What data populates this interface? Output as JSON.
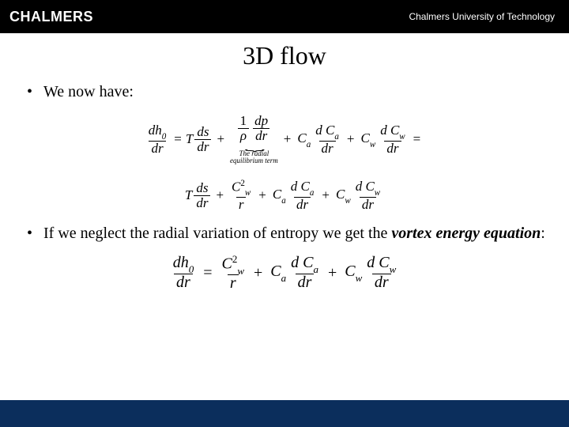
{
  "header": {
    "logo_text": "CHALMERS",
    "university": "Chalmers University of Technology"
  },
  "slide": {
    "title": "3D flow",
    "bullet1": "We now have:",
    "bullet2_a": "If we neglect the radial variation of entropy we get the ",
    "bullet2_b": "vortex energy equation",
    "bullet2_c": ":"
  },
  "equations": {
    "brace_label_line1": "The radial",
    "brace_label_line2": "equilibrium term",
    "h0": "dh",
    "zero": "0",
    "dr": "dr",
    "T": "T",
    "ds": "ds",
    "one": "1",
    "rho": "ρ",
    "dp": "dp",
    "Ca": "C",
    "a": "a",
    "dCa": "d C",
    "Cw": "C",
    "w": "w",
    "dCw": "d C",
    "Cw2": "C",
    "two": "2",
    "r": "r"
  },
  "style": {
    "brand_bar_bg": "#000000",
    "footer_bg": "#0b2e5c",
    "text": "#000000",
    "slide_bg": "#ffffff"
  }
}
